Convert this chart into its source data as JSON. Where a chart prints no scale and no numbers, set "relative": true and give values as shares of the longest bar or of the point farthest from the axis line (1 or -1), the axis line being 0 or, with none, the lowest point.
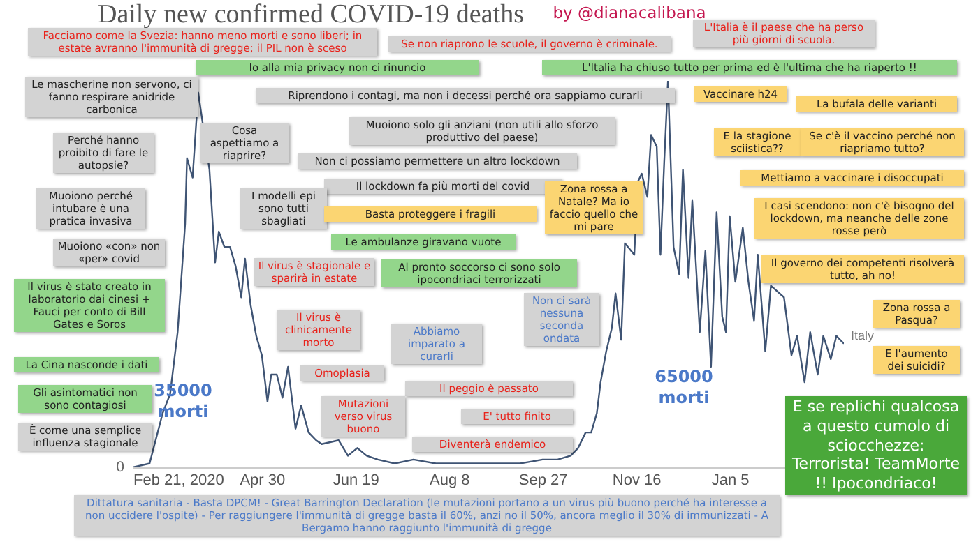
{
  "chart_data": {
    "type": "line",
    "title": "Daily new confirmed COVID-19 deaths",
    "relative": true,
    "xlim": [
      "2020-02-21",
      "2021-03-07"
    ],
    "xticks": [
      {
        "value": "2020-02-21",
        "label": "Feb 21, 2020"
      },
      {
        "value": "2020-04-30",
        "label": "Apr 30"
      },
      {
        "value": "2020-06-19",
        "label": "Jun 19"
      },
      {
        "value": "2020-08-08",
        "label": "Aug 8"
      },
      {
        "value": "2020-09-27",
        "label": "Sep 27"
      },
      {
        "value": "2020-11-16",
        "label": "Nov 16"
      },
      {
        "value": "2021-01-05",
        "label": "Jan 5"
      }
    ],
    "x": [
      "2020-02-21",
      "2020-03-01",
      "2020-03-08",
      "2020-03-12",
      "2020-03-16",
      "2020-03-20",
      "2020-03-21",
      "2020-03-24",
      "2020-03-27",
      "2020-04-02",
      "2020-04-05",
      "2020-04-07",
      "2020-04-10",
      "2020-04-13",
      "2020-04-16",
      "2020-04-19",
      "2020-04-21",
      "2020-04-24",
      "2020-04-27",
      "2020-04-30",
      "2020-05-03",
      "2020-05-05",
      "2020-05-08",
      "2020-05-11",
      "2020-05-14",
      "2020-05-18",
      "2020-05-21",
      "2020-05-25",
      "2020-05-29",
      "2020-06-01",
      "2020-06-10",
      "2020-06-15",
      "2020-06-20",
      "2020-06-25",
      "2020-07-01",
      "2020-07-10",
      "2020-07-20",
      "2020-08-01",
      "2020-08-15",
      "2020-09-01",
      "2020-09-15",
      "2020-09-27",
      "2020-10-05",
      "2020-10-12",
      "2020-10-16",
      "2020-10-20",
      "2020-10-23",
      "2020-10-26",
      "2020-10-28",
      "2020-10-31",
      "2020-11-03",
      "2020-11-05",
      "2020-11-08",
      "2020-11-10",
      "2020-11-15",
      "2020-11-17",
      "2020-11-19",
      "2020-11-22",
      "2020-11-24",
      "2020-11-27",
      "2020-11-29",
      "2020-12-01",
      "2020-12-03",
      "2020-12-06",
      "2020-12-09",
      "2020-12-11",
      "2020-12-14",
      "2020-12-16",
      "2020-12-20",
      "2020-12-23",
      "2020-12-26",
      "2020-12-29",
      "2021-01-01",
      "2021-01-03",
      "2021-01-05",
      "2021-01-08",
      "2021-01-12",
      "2021-01-15",
      "2021-01-18",
      "2021-01-20",
      "2021-01-24",
      "2021-01-27",
      "2021-02-03",
      "2021-02-07",
      "2021-02-10",
      "2021-02-14",
      "2021-02-17",
      "2021-02-21",
      "2021-02-24",
      "2021-02-28",
      "2021-03-03",
      "2021-03-07"
    ],
    "series": [
      {
        "name": "Italy",
        "color": "#3f5474",
        "values": [
          0,
          0.01,
          0.14,
          0.19,
          0.35,
          0.63,
          0.8,
          0.75,
          0.97,
          0.77,
          0.53,
          0.61,
          0.57,
          0.57,
          0.52,
          0.44,
          0.54,
          0.42,
          0.34,
          0.29,
          0.17,
          0.24,
          0.24,
          0.18,
          0.26,
          0.1,
          0.16,
          0.09,
          0.07,
          0.06,
          0.07,
          0.03,
          0.05,
          0.03,
          0.02,
          0.01,
          0.02,
          0.01,
          0.01,
          0.01,
          0.01,
          0.02,
          0.02,
          0.03,
          0.05,
          0.09,
          0.09,
          0.14,
          0.22,
          0.3,
          0.36,
          0.45,
          0.33,
          0.58,
          0.55,
          0.74,
          0.76,
          0.7,
          0.86,
          0.83,
          0.55,
          0.79,
          1,
          0.57,
          0.5,
          0.77,
          0.49,
          0.69,
          0.35,
          0.56,
          0.26,
          0.66,
          0.39,
          0.35,
          0.65,
          0.48,
          0.62,
          0.48,
          0.38,
          0.55,
          0.3,
          0.47,
          0.44,
          0.29,
          0.34,
          0.22,
          0.35,
          0.24,
          0.34,
          0.28,
          0.34,
          0.32
        ]
      }
    ],
    "annotations": [
      "Facciamo come la Svezia: hanno  meno morti e sono liberi; in estate avranno l'immunità di gregge; il PIL non è sceso",
      "Se non riaprono le scuole, il governo è criminale.",
      "L'Italia è il paese che ha perso più giorni di scuola.",
      "Io alla mia privacy non ci rinuncio",
      "L'Italia ha chiuso tutto per prima ed è l'ultima che ha riaperto !!",
      "Le mascherine non servono, ci fanno respirare anidride carbonica",
      "Riprendono i contagi, ma non i decessi perché ora sappiamo curarli",
      "Vaccinare h24",
      "La bufala delle varianti",
      "Perché hanno proibito di fare le autopsie?",
      "Cosa aspettiamo a riaprire?",
      "Muoiono solo gli anziani (non utili allo sforzo produttivo del paese)",
      "E la stagione sciistica??",
      "Se c'è il vaccino perché non riapriamo tutto?",
      "Non ci possiamo permettere un altro lockdown",
      "Il lockdown fa più morti del covid",
      "Mettiamo a vaccinare i disoccupati",
      "Muoiono perché intubare è una pratica invasiva",
      "I modelli epi sono tutti sbagliati",
      "Zona rossa a Natale? Ma io faccio quello che mi pare",
      "I casi scendono: non c'è bisogno del lockdown, ma neanche delle zone rosse però",
      "Basta proteggere i fragili",
      "Muoiono «con» non «per» covid",
      "Le ambulanze giravano vuote",
      "Il virus è stagionale e sparirà in estate",
      "Al pronto soccorso ci sono solo ipocondriaci terrorizzati",
      "Il governo dei competenti risolverà tutto, ah no!",
      "Il virus è stato creato in laboratorio dai cinesi + Fauci per conto di Bill Gates e Soros",
      "Il virus è clinicamente morto",
      "Non ci sarà nessuna seconda ondata",
      "Abbiamo imparato a curarli",
      "Zona rossa a Pasqua?",
      "La Cina nasconde i dati",
      "E l'aumento dei suicidi?",
      "Omoplasia",
      "35000 morti",
      "65000 morti",
      "Il peggio è passato",
      "Gli asintomatici non sono contagiosi",
      "Mutazioni verso virus buono",
      "E' tutto finito",
      "E se replichi qualcosa a questo cumolo di sciocchezze: Terrorista! TeamMorte !! Ipocondriaco!",
      "È come una semplice influenza stagionale",
      "Diventerà endemico",
      "Dittatura sanitaria - Basta DPCM! - Great Barrington Declaration (le mutazioni portano a un virus più buono perché ha interesse a non uccidere l'ospite) - Per raggiungere l'immunità di gregge basta il 60%, anzi no il 50%, ancora meglio il 30% di immunizzati - A Bergamo hanno raggiunto l'immunità di gregge",
      "by @dianacalibana",
      "0"
    ]
  }
}
